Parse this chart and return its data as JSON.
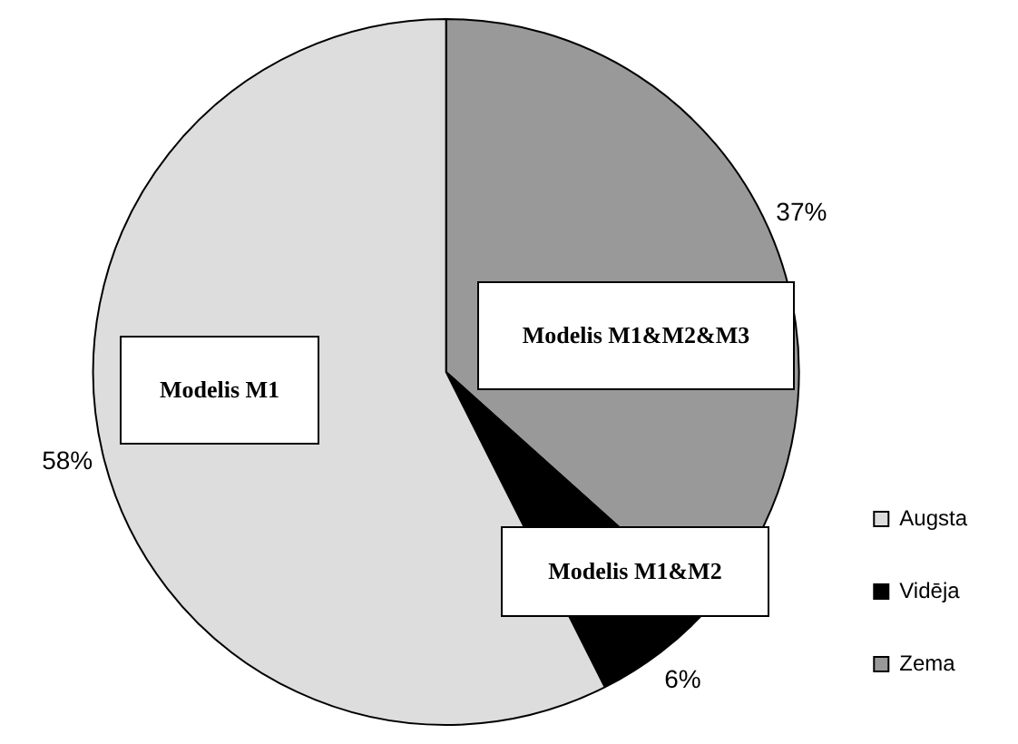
{
  "chart_data": {
    "type": "pie",
    "categories": [
      "Augsta",
      "Vidēja",
      "Zema"
    ],
    "values": [
      58,
      6,
      37
    ],
    "value_labels": [
      "58%",
      "6%",
      "37%"
    ],
    "colors": [
      "#dddddd",
      "#000000",
      "#999999"
    ],
    "legend": "right",
    "annotations": [
      "Modelis M1",
      "Modelis M1&M2&M3",
      "Modelis M1&M2"
    ]
  }
}
